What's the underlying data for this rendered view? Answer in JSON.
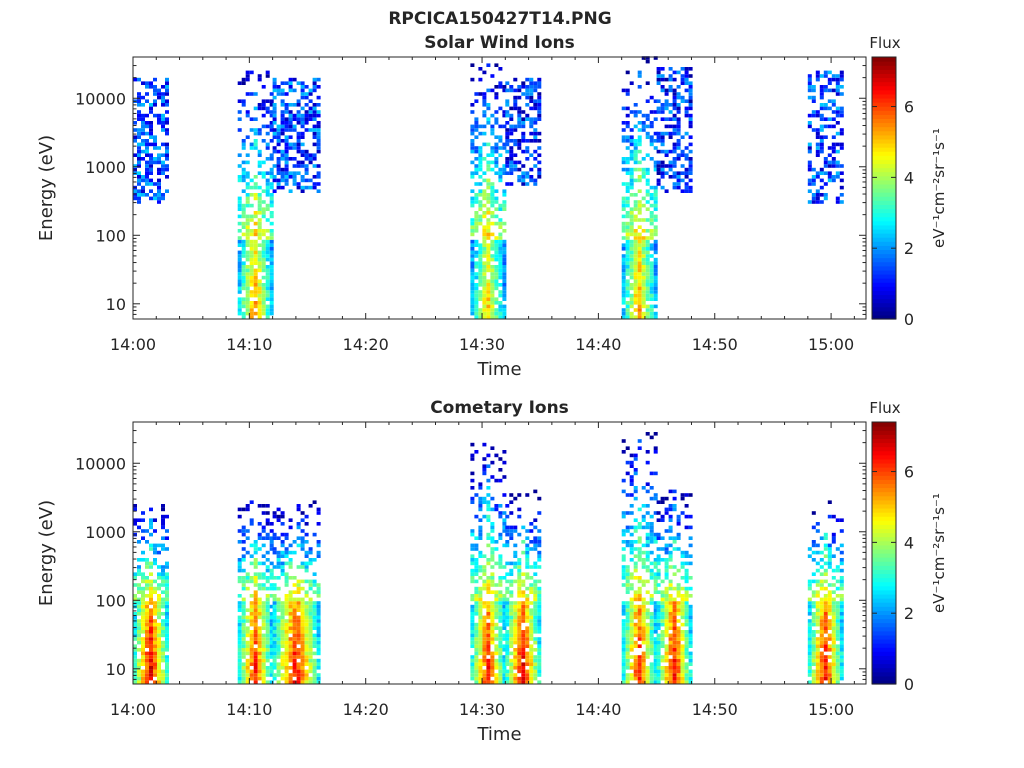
{
  "figure": {
    "title": "RPCICA150427T14.PNG"
  },
  "chart_data": [
    {
      "type": "heatmap",
      "title": "Solar Wind Ions",
      "xlabel": "Time",
      "ylabel": "Energy (eV)",
      "x_ticks": [
        "14:00",
        "14:10",
        "14:20",
        "14:30",
        "14:40",
        "14:50",
        "15:00"
      ],
      "xlim": [
        "14:00",
        "15:03"
      ],
      "y_ticks": [
        10,
        100,
        1000,
        10000
      ],
      "y_tick_labels": [
        "10",
        "100",
        "1000",
        "10000"
      ],
      "y_scale": "log",
      "ylim": [
        6,
        40000
      ],
      "colorbar": {
        "title": "Flux",
        "label": "eV⁻¹cm⁻²sr⁻¹s⁻¹",
        "range": [
          0,
          7.4
        ],
        "ticks": [
          0,
          2,
          4,
          6
        ],
        "colormap": "jet"
      },
      "bursts": [
        {
          "start": "14:00",
          "end": "14:03",
          "e_low": 300,
          "e_high": 20000,
          "peak_flux": 2.5
        },
        {
          "start": "14:09",
          "end": "14:12",
          "e_low": 6,
          "e_high": 30000,
          "peak_flux": 6.0
        },
        {
          "start": "14:12",
          "end": "14:16",
          "e_low": 400,
          "e_high": 20000,
          "peak_flux": 2.4
        },
        {
          "start": "14:29",
          "end": "14:32",
          "e_low": 6,
          "e_high": 40000,
          "peak_flux": 5.5
        },
        {
          "start": "14:32",
          "end": "14:35",
          "e_low": 500,
          "e_high": 20000,
          "peak_flux": 2.2
        },
        {
          "start": "14:42",
          "end": "14:45",
          "e_low": 6,
          "e_high": 40000,
          "peak_flux": 5.8
        },
        {
          "start": "14:45",
          "end": "14:48",
          "e_low": 400,
          "e_high": 30000,
          "peak_flux": 2.2
        },
        {
          "start": "14:58",
          "end": "15:01",
          "e_low": 300,
          "e_high": 25000,
          "peak_flux": 2.4
        }
      ]
    },
    {
      "type": "heatmap",
      "title": "Cometary Ions",
      "xlabel": "Time",
      "ylabel": "Energy (eV)",
      "x_ticks": [
        "14:00",
        "14:10",
        "14:20",
        "14:30",
        "14:40",
        "14:50",
        "15:00"
      ],
      "xlim": [
        "14:00",
        "15:03"
      ],
      "y_ticks": [
        10,
        100,
        1000,
        10000
      ],
      "y_tick_labels": [
        "10",
        "100",
        "1000",
        "10000"
      ],
      "y_scale": "log",
      "ylim": [
        6,
        40000
      ],
      "colorbar": {
        "title": "Flux",
        "label": "eV⁻¹cm⁻²sr⁻¹s⁻¹",
        "range": [
          0,
          7.4
        ],
        "ticks": [
          0,
          2,
          4,
          6
        ],
        "colormap": "jet"
      },
      "bursts": [
        {
          "start": "14:00",
          "end": "14:03",
          "e_low": 6,
          "e_high": 3000,
          "peak_flux": 7.2
        },
        {
          "start": "14:09",
          "end": "14:12",
          "e_low": 6,
          "e_high": 3000,
          "peak_flux": 6.8
        },
        {
          "start": "14:12",
          "end": "14:16",
          "e_low": 6,
          "e_high": 3000,
          "peak_flux": 7.0
        },
        {
          "start": "14:29",
          "end": "14:32",
          "e_low": 6,
          "e_high": 20000,
          "peak_flux": 6.8
        },
        {
          "start": "14:32",
          "end": "14:35",
          "e_low": 6,
          "e_high": 4000,
          "peak_flux": 7.2
        },
        {
          "start": "14:42",
          "end": "14:45",
          "e_low": 6,
          "e_high": 30000,
          "peak_flux": 6.8
        },
        {
          "start": "14:45",
          "end": "14:48",
          "e_low": 6,
          "e_high": 4000,
          "peak_flux": 7.0
        },
        {
          "start": "14:58",
          "end": "15:01",
          "e_low": 6,
          "e_high": 3000,
          "peak_flux": 7.0
        }
      ]
    }
  ]
}
